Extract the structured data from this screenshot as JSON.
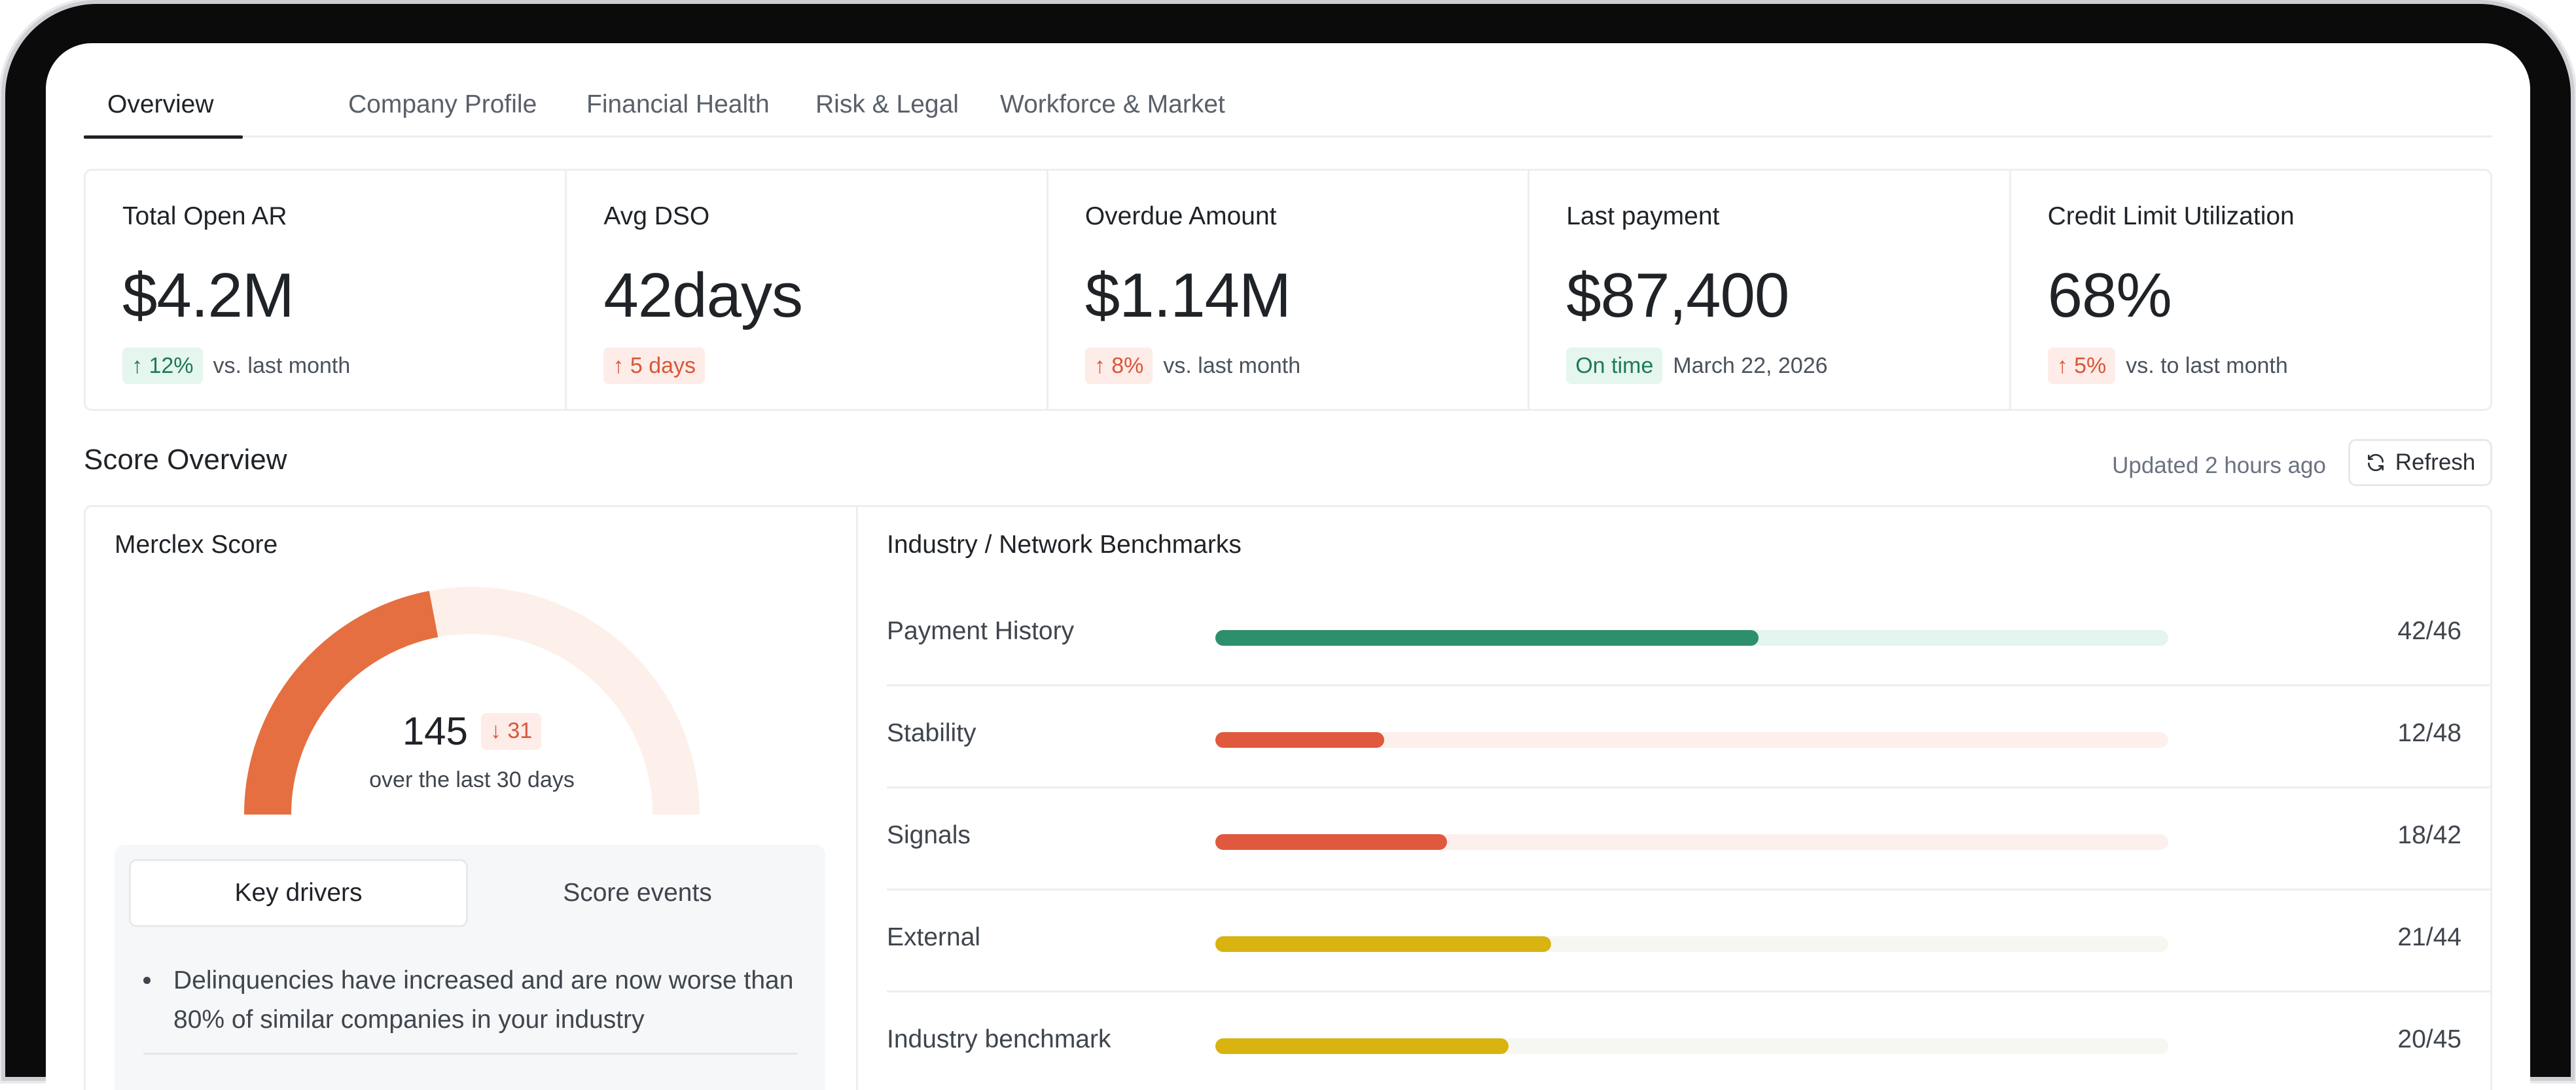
{
  "tabs": [
    {
      "label": "Overview",
      "active": true
    },
    {
      "label": "Company Profile"
    },
    {
      "label": "Financial Health"
    },
    {
      "label": "Risk & Legal"
    },
    {
      "label": "Workforce & Market"
    }
  ],
  "kpis": [
    {
      "label": "Total Open AR",
      "value": "$4.2M",
      "badge": "↑ 12%",
      "badge_tone": "green",
      "note": "vs. last month"
    },
    {
      "label": "Avg DSO",
      "value": "42days",
      "badge": "↑ 5 days",
      "badge_tone": "red",
      "note": ""
    },
    {
      "label": "Overdue Amount",
      "value": "$1.14M",
      "badge": "↑ 8%",
      "badge_tone": "red",
      "note": "vs. last month"
    },
    {
      "label": "Last payment",
      "value": "$87,400",
      "badge": "On time",
      "badge_tone": "green",
      "note": "March 22, 2026"
    },
    {
      "label": "Credit Limit Utilization",
      "value": "68%",
      "badge": "↑ 5%",
      "badge_tone": "red",
      "note": "vs. to last month"
    }
  ],
  "score_section": {
    "title": "Score Overview",
    "updated": "Updated 2 hours ago",
    "refresh_label": "Refresh"
  },
  "merclex": {
    "title": "Merclex Score",
    "score": "145",
    "change": "↓ 31",
    "period": "over the last 30 days",
    "gauge_fraction": 0.44,
    "colors": {
      "fill": "#e56f40",
      "track": "#fdf0ea"
    }
  },
  "drivers": {
    "tab_active": "Key drivers",
    "tab_other": "Score events",
    "items": [
      "Delinquencies have increased and are now worse than 80% of similar companies in your industry"
    ]
  },
  "benchmarks": {
    "title": "Industry / Network Benchmarks",
    "rows": [
      {
        "label": "Payment History",
        "value": "42/46",
        "fraction": 0.57,
        "fill": "#2e8f6c",
        "track": "#e3f5ee"
      },
      {
        "label": "Stability",
        "value": "12/48",
        "fraction": 0.177,
        "fill": "#e0593e",
        "track": "#fdf0ec"
      },
      {
        "label": "Signals",
        "value": "18/42",
        "fraction": 0.243,
        "fill": "#e0593e",
        "track": "#fdf0ec"
      },
      {
        "label": "External",
        "value": "21/44",
        "fraction": 0.352,
        "fill": "#d9b310",
        "track": "#f7f7f2"
      },
      {
        "label": "Industry benchmark",
        "value": "20/45",
        "fraction": 0.308,
        "fill": "#d9b310",
        "track": "#f7f7f2"
      }
    ]
  }
}
